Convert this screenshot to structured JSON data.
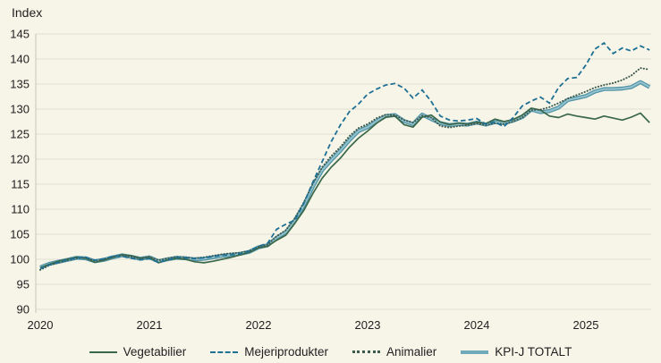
{
  "header": {
    "unit_label": "Index"
  },
  "colors": {
    "background": "#f7f4e8",
    "gridline": "#e2dfd3",
    "axis_line": "#c8c5b6",
    "text": "#1f1f1f",
    "vegetabilier": "#3a684b",
    "mejeriprodukter": "#1f7095",
    "animalier": "#3d5a4e",
    "kpi_totalt": "#4f93a5",
    "kpi_totalt_light": "#93c2ce"
  },
  "chart_data": {
    "type": "line",
    "ylabel": "Index",
    "frequency": "monthly",
    "x_range": "2020-01 to 2025-08",
    "x_tick_labels": [
      "2020",
      "2021",
      "2022",
      "2023",
      "2024",
      "2025"
    ],
    "ylim": [
      90,
      145
    ],
    "y_ticks": [
      90,
      95,
      100,
      105,
      110,
      115,
      120,
      125,
      130,
      135,
      140,
      145
    ],
    "grid": true,
    "legend_position": "bottom",
    "series": [
      {
        "name": "Vegetabilier",
        "line_style": "solid",
        "color": "#3a684b",
        "values": [
          98.3,
          99.0,
          99.6,
          100.0,
          100.4,
          100.2,
          99.4,
          99.8,
          100.4,
          100.9,
          100.7,
          100.2,
          100.4,
          99.3,
          99.9,
          100.2,
          100.0,
          99.5,
          99.3,
          99.6,
          100.0,
          100.4,
          100.9,
          101.4,
          102.3,
          102.6,
          103.8,
          104.8,
          107.2,
          109.8,
          113.2,
          116.2,
          118.4,
          120.2,
          122.4,
          124.2,
          125.6,
          127.2,
          128.4,
          128.6,
          126.9,
          126.4,
          128.4,
          128.8,
          127.4,
          126.9,
          127.2,
          127.0,
          127.4,
          127.1,
          128.0,
          127.5,
          127.9,
          128.8,
          130.2,
          129.8,
          128.6,
          128.3,
          129.0,
          128.6,
          128.3,
          128.0,
          128.6,
          128.2,
          127.8,
          128.4,
          129.2,
          127.3
        ]
      },
      {
        "name": "Mejeriprodukter",
        "line_style": "dashed",
        "color": "#1f7095",
        "values": [
          98.1,
          98.9,
          99.4,
          99.9,
          100.3,
          100.4,
          99.8,
          100.1,
          100.6,
          100.6,
          100.2,
          99.9,
          100.1,
          99.4,
          99.9,
          100.4,
          100.3,
          100.1,
          100.3,
          100.5,
          100.8,
          100.9,
          101.1,
          101.6,
          102.6,
          103.2,
          106.0,
          107.0,
          107.8,
          111.2,
          115.5,
          119.5,
          123.5,
          126.8,
          129.5,
          131.0,
          133.0,
          134.0,
          134.8,
          135.1,
          134.2,
          132.2,
          133.8,
          131.5,
          128.6,
          127.8,
          127.6,
          127.8,
          128.1,
          127.0,
          127.4,
          126.5,
          128.3,
          130.6,
          131.6,
          132.4,
          131.2,
          134.3,
          136.1,
          136.3,
          138.8,
          142.0,
          143.2,
          141.1,
          142.2,
          141.6,
          142.6,
          141.8
        ]
      },
      {
        "name": "Animalier",
        "line_style": "dotted",
        "color": "#3d5a4e",
        "values": [
          97.9,
          98.8,
          99.3,
          99.8,
          100.2,
          100.3,
          99.7,
          100.0,
          100.5,
          100.8,
          100.5,
          100.1,
          100.5,
          99.8,
          100.2,
          100.5,
          100.4,
          100.2,
          100.4,
          100.7,
          101.0,
          101.2,
          101.3,
          101.7,
          102.5,
          102.9,
          104.6,
          105.8,
          108.2,
          111.4,
          115.2,
          118.4,
          120.6,
          122.4,
          124.6,
          126.2,
          127.0,
          128.2,
          128.9,
          128.8,
          127.8,
          127.3,
          128.7,
          128.3,
          126.6,
          126.3,
          126.6,
          126.8,
          127.1,
          126.8,
          127.2,
          127.0,
          127.5,
          128.3,
          129.8,
          129.9,
          130.4,
          131.2,
          132.1,
          132.8,
          133.5,
          134.3,
          134.8,
          135.2,
          135.8,
          136.7,
          138.2,
          137.9
        ]
      },
      {
        "name": "KPI-J TOTALT",
        "line_style": "thick",
        "color": "#4f93a5",
        "color_light": "#93c2ce",
        "legend_color": "#6fa9ba",
        "values": [
          98.4,
          99.1,
          99.5,
          99.9,
          100.3,
          100.2,
          99.6,
          99.9,
          100.4,
          100.8,
          100.5,
          100.1,
          100.4,
          99.6,
          100.0,
          100.3,
          100.2,
          100.0,
          100.1,
          100.4,
          100.7,
          100.9,
          101.1,
          101.5,
          102.4,
          102.8,
          104.3,
          105.4,
          107.8,
          110.8,
          114.6,
          117.8,
          119.8,
          121.7,
          123.8,
          125.6,
          126.4,
          127.6,
          128.6,
          128.8,
          127.6,
          127.0,
          128.9,
          128.0,
          127.2,
          126.8,
          127.0,
          126.9,
          127.3,
          126.9,
          127.4,
          127.2,
          127.7,
          128.4,
          129.9,
          129.4,
          129.6,
          130.3,
          131.8,
          132.2,
          132.6,
          133.5,
          134.0,
          134.0,
          134.1,
          134.4,
          135.4,
          134.4
        ]
      }
    ]
  }
}
